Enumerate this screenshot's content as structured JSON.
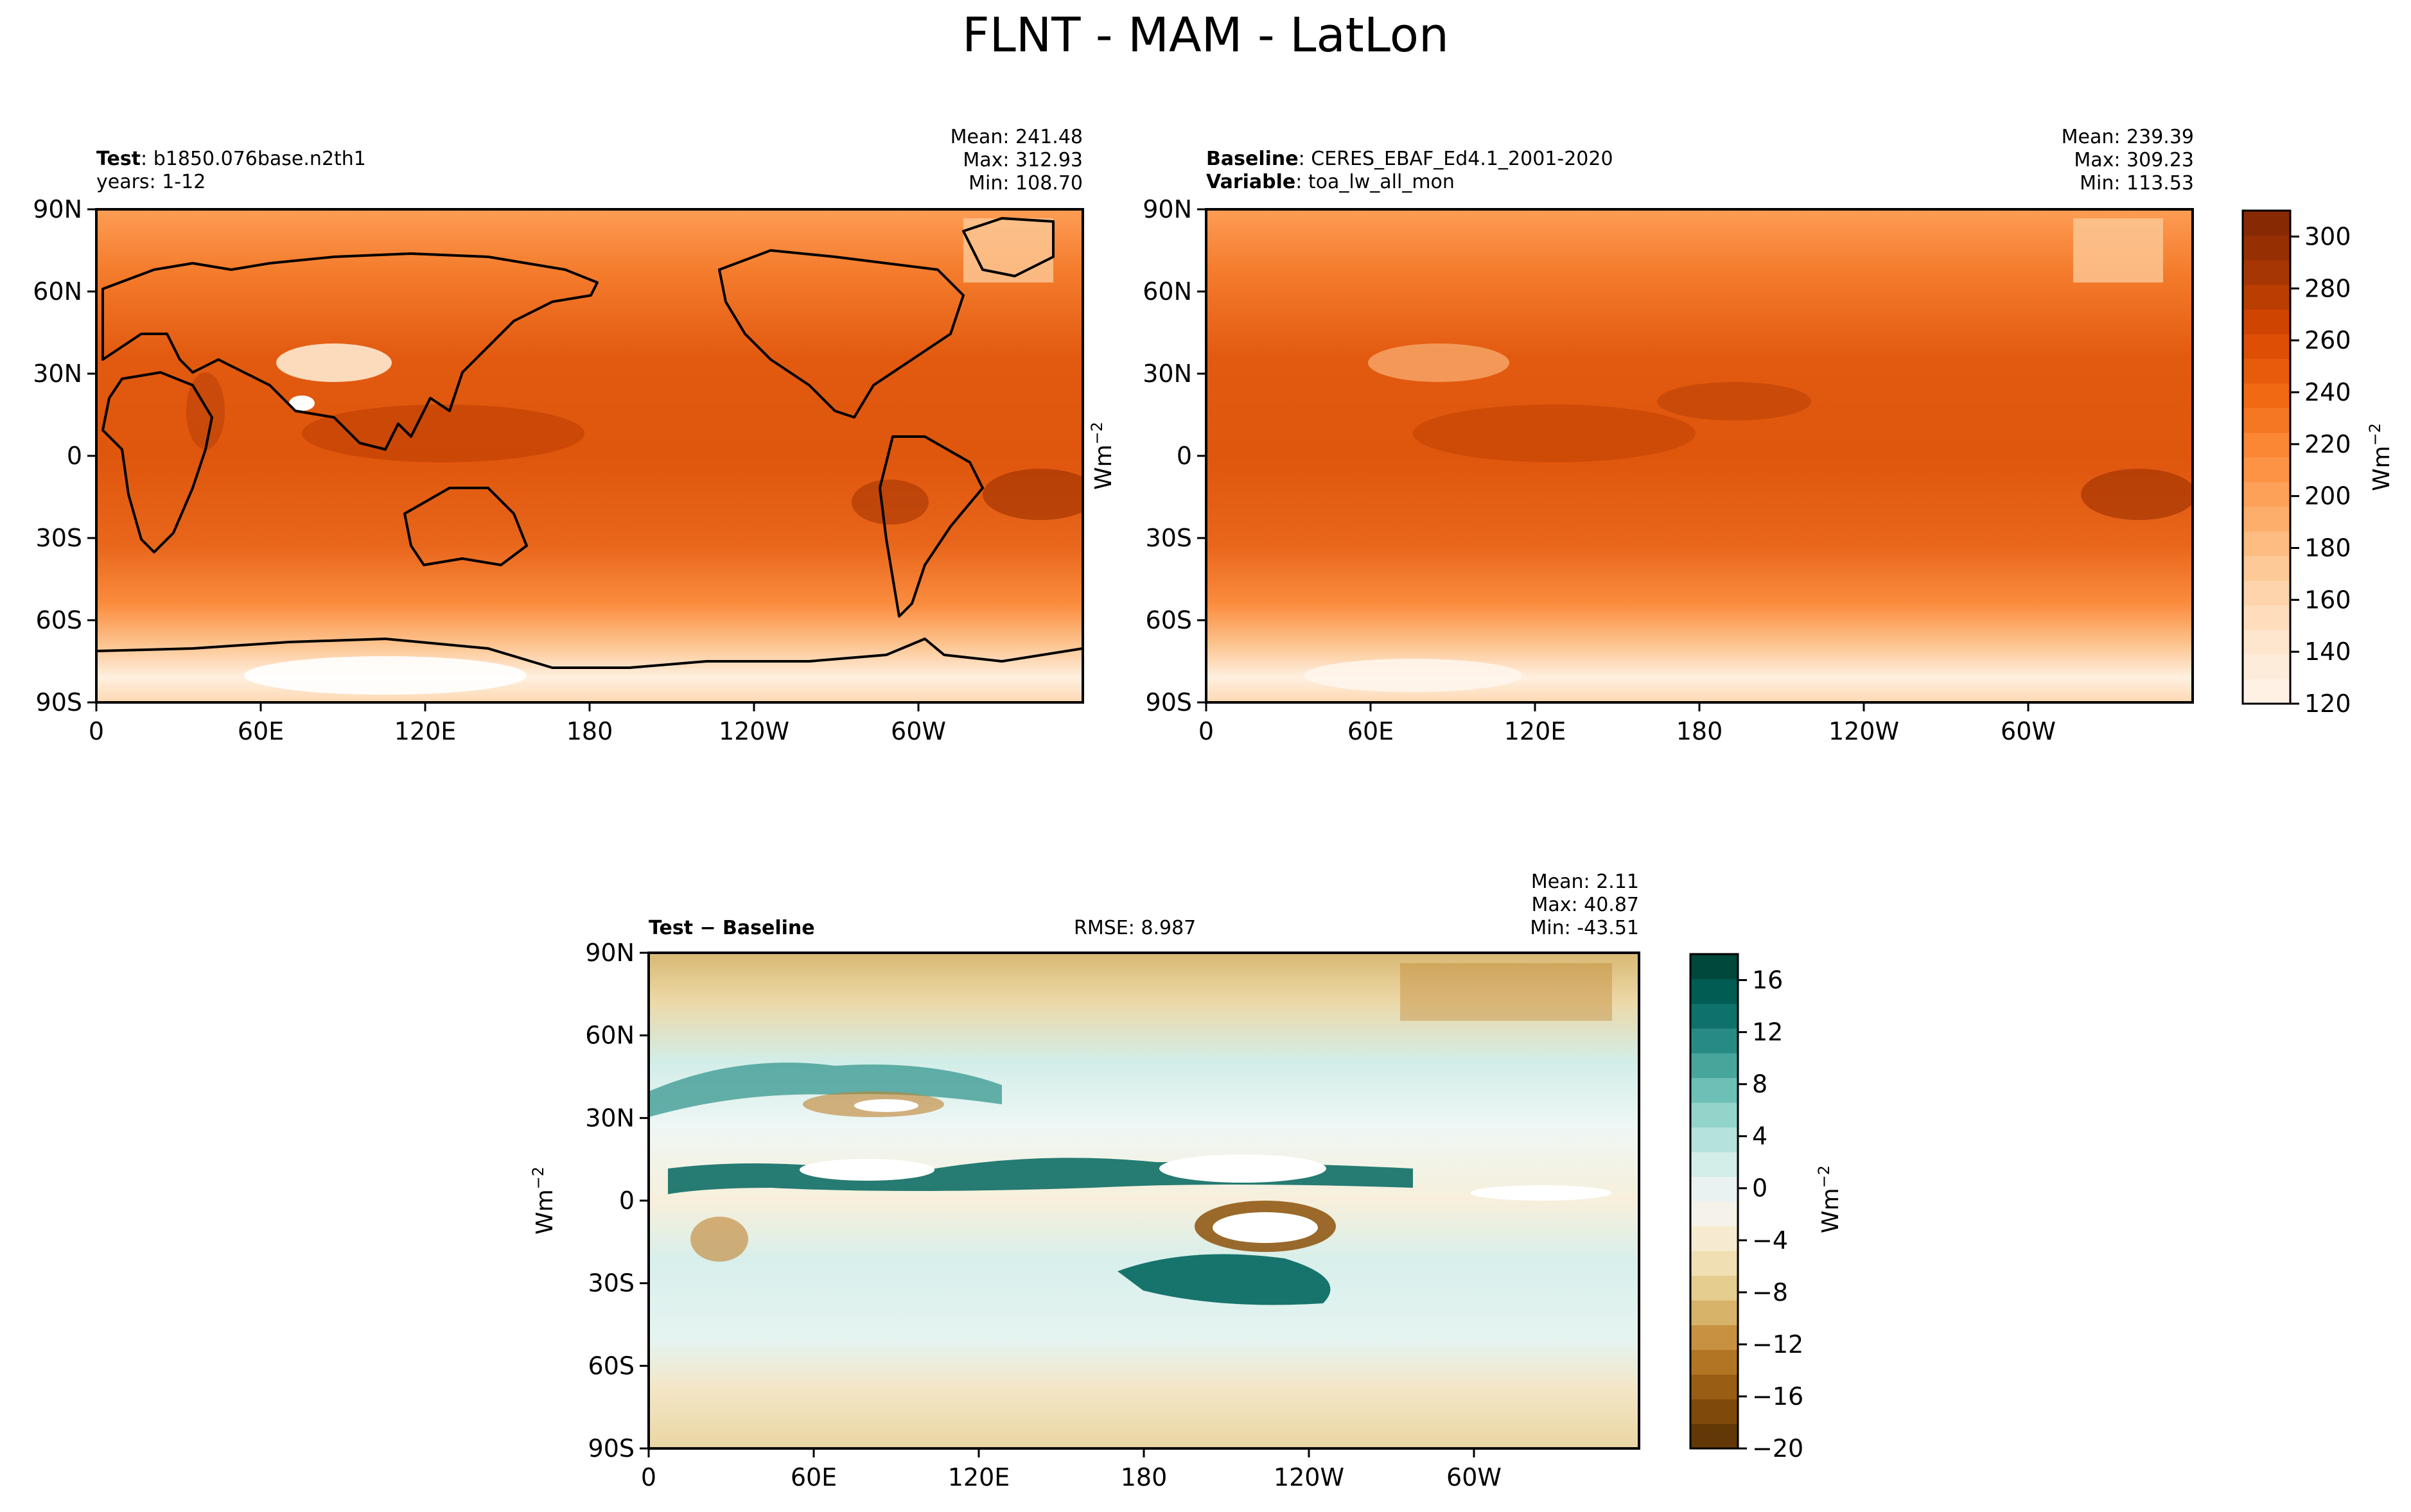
{
  "title": "FLNT - MAM - LatLon",
  "panels": {
    "test": {
      "label_key": "Test",
      "label_value": "b1850.076base.n2th1",
      "line2": "years: 1-12",
      "mean": "Mean: 241.48",
      "max": "Max: 312.93",
      "min": "Min: 108.70"
    },
    "baseline": {
      "label_key": "Baseline",
      "label_value": "CERES_EBAF_Ed4.1_2001-2020",
      "var_key": "Variable",
      "var_value": "toa_lw_all_mon",
      "mean": "Mean: 239.39",
      "max": "Max: 309.23",
      "min": "Min: 113.53"
    },
    "diff": {
      "label": "Test − Baseline",
      "rmse": "RMSE: 8.987",
      "mean": "Mean:  2.11",
      "max": "Max: 40.87",
      "min": "Min: -43.51"
    }
  },
  "colors": {
    "orange_ramp": [
      "#fff5eb",
      "#fee6ce",
      "#fdd0a2",
      "#fdae6b",
      "#fd8d3c",
      "#f16913",
      "#d94801",
      "#a63603",
      "#7f2704"
    ],
    "diverging_ramp": [
      "#543005",
      "#8c510a",
      "#bf812d",
      "#dfc27d",
      "#f6e8c3",
      "#f5f5f5",
      "#c7eae5",
      "#80cdc1",
      "#35978f",
      "#01665e",
      "#003c30"
    ],
    "land_outline": "#000000"
  },
  "chart_data": [
    {
      "type": "heatmap",
      "name": "test",
      "x_ticks": [
        "0",
        "60E",
        "120E",
        "180",
        "120W",
        "60W"
      ],
      "y_ticks": [
        "90N",
        "60N",
        "30N",
        "0",
        "30S",
        "60S",
        "90S"
      ],
      "xlim": [
        0,
        360
      ],
      "ylim": [
        -90,
        90
      ],
      "ylabel": "",
      "summary": {
        "mean": 241.48,
        "max": 312.93,
        "min": 108.7
      }
    },
    {
      "type": "heatmap",
      "name": "baseline",
      "x_ticks": [
        "0",
        "60E",
        "120E",
        "180",
        "120W",
        "60W"
      ],
      "y_ticks": [
        "90N",
        "60N",
        "30N",
        "0",
        "30S",
        "60S",
        "90S"
      ],
      "xlim": [
        0,
        360
      ],
      "ylim": [
        -90,
        90
      ],
      "ylabel": "Wm$^{-2}$",
      "summary": {
        "mean": 239.39,
        "max": 309.23,
        "min": 113.53
      }
    },
    {
      "type": "heatmap",
      "name": "difference",
      "x_ticks": [
        "0",
        "60E",
        "120E",
        "180",
        "120W",
        "60W"
      ],
      "y_ticks": [
        "90N",
        "60N",
        "30N",
        "0",
        "30S",
        "60S",
        "90S"
      ],
      "xlim": [
        0,
        360
      ],
      "ylim": [
        -90,
        90
      ],
      "ylabel": "Wm$^{-2}$",
      "summary": {
        "mean": 2.11,
        "max": 40.87,
        "min": -43.51,
        "rmse": 8.987
      }
    }
  ],
  "colorbar_top": {
    "ticks": [
      "300",
      "280",
      "260",
      "240",
      "220",
      "200",
      "180",
      "160",
      "140",
      "120"
    ],
    "tick_values": [
      300,
      280,
      260,
      240,
      220,
      200,
      180,
      160,
      140,
      120
    ],
    "range": [
      120,
      310
    ],
    "label": "Wm",
    "label_sup": "−2"
  },
  "colorbar_diff": {
    "ticks": [
      "16",
      "12",
      "8",
      "4",
      "0",
      "−4",
      "−8",
      "−12",
      "−16",
      "−20"
    ],
    "tick_values": [
      16,
      12,
      8,
      4,
      0,
      -4,
      -8,
      -12,
      -16,
      -20
    ],
    "range": [
      -20,
      18
    ],
    "label": "Wm",
    "label_sup": "−2"
  },
  "axis_unit": {
    "label": "Wm",
    "sup": "−2"
  }
}
